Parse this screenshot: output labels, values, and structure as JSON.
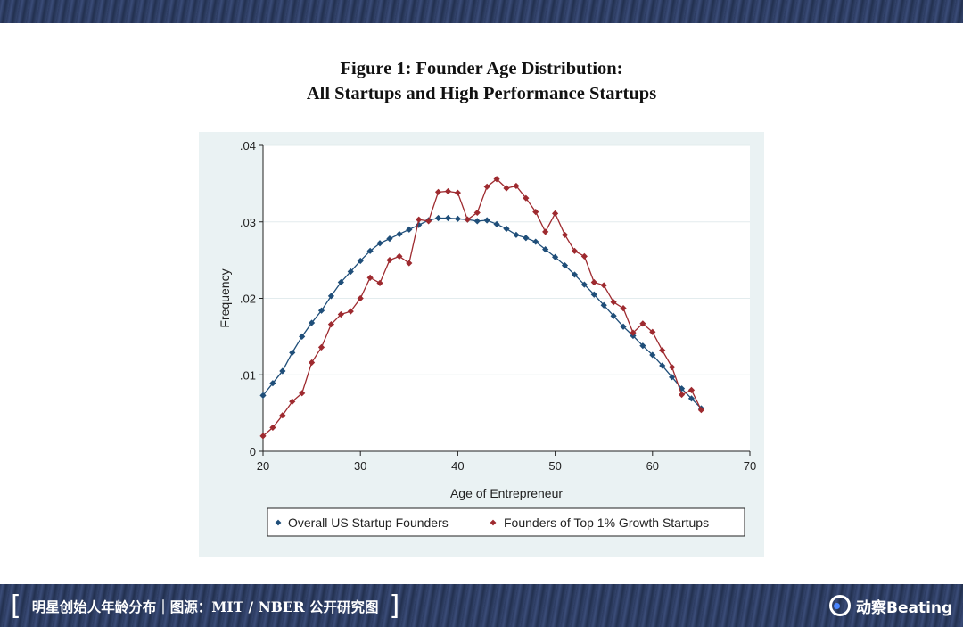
{
  "page": {
    "title_line1": "Figure 1: Founder Age Distribution:",
    "title_line2": "All Startups and High Performance Startups"
  },
  "footer": {
    "caption": "明星创始人年龄分布｜图源：MIT / NBER 公开研究图",
    "logo_text": "动察Beating",
    "bracket_left": "[",
    "bracket_right": "]"
  },
  "colors": {
    "band": "#2b3a5f",
    "chart_background": "#eaf2f3",
    "series_overall": "#1f4e79",
    "series_top": "#9e2a2f",
    "logo_accent": "#4a86ff"
  },
  "chart_data": {
    "type": "line",
    "title": "",
    "xlabel": "Age of Entrepreneur",
    "ylabel": "Frequency",
    "xlim": [
      20,
      70
    ],
    "ylim": [
      0,
      0.04
    ],
    "x_ticks": [
      20,
      30,
      40,
      50,
      60,
      70
    ],
    "x_tick_labels": [
      "20",
      "30",
      "40",
      "50",
      "60",
      "70"
    ],
    "y_ticks": [
      0,
      0.01,
      0.02,
      0.03,
      0.04
    ],
    "y_tick_labels": [
      "0",
      ".01",
      ".02",
      ".03",
      ".04"
    ],
    "grid": true,
    "legend_position": "bottom",
    "x": [
      20,
      21,
      22,
      23,
      24,
      25,
      26,
      27,
      28,
      29,
      30,
      31,
      32,
      33,
      34,
      35,
      36,
      37,
      38,
      39,
      40,
      41,
      42,
      43,
      44,
      45,
      46,
      47,
      48,
      49,
      50,
      51,
      52,
      53,
      54,
      55,
      56,
      57,
      58,
      59,
      60,
      61,
      62,
      63,
      64,
      65
    ],
    "series": [
      {
        "name": "Overall US Startup Founders",
        "marker": "diamond",
        "values": [
          0.0073,
          0.0089,
          0.0105,
          0.0129,
          0.015,
          0.0168,
          0.0184,
          0.0203,
          0.0221,
          0.0235,
          0.0249,
          0.0262,
          0.0272,
          0.0278,
          0.0284,
          0.029,
          0.0296,
          0.0302,
          0.0305,
          0.0305,
          0.0304,
          0.0303,
          0.0301,
          0.0302,
          0.0297,
          0.0291,
          0.0283,
          0.0279,
          0.0274,
          0.0264,
          0.0254,
          0.0243,
          0.0231,
          0.0218,
          0.0205,
          0.0191,
          0.0177,
          0.0163,
          0.0151,
          0.0138,
          0.0126,
          0.0112,
          0.0097,
          0.0082,
          0.0069,
          0.0056
        ]
      },
      {
        "name": "Founders of Top 1% Growth Startups",
        "marker": "diamond",
        "values": [
          0.002,
          0.0031,
          0.0047,
          0.0065,
          0.0076,
          0.0116,
          0.0136,
          0.0166,
          0.0179,
          0.0183,
          0.02,
          0.0227,
          0.022,
          0.025,
          0.0255,
          0.0246,
          0.0303,
          0.0301,
          0.0339,
          0.034,
          0.0338,
          0.0303,
          0.0312,
          0.0346,
          0.0356,
          0.0344,
          0.0347,
          0.0331,
          0.0313,
          0.0287,
          0.0311,
          0.0283,
          0.0262,
          0.0255,
          0.0221,
          0.0217,
          0.0195,
          0.0187,
          0.0155,
          0.0167,
          0.0156,
          0.0132,
          0.011,
          0.0074,
          0.008,
          0.0054
        ]
      }
    ]
  }
}
